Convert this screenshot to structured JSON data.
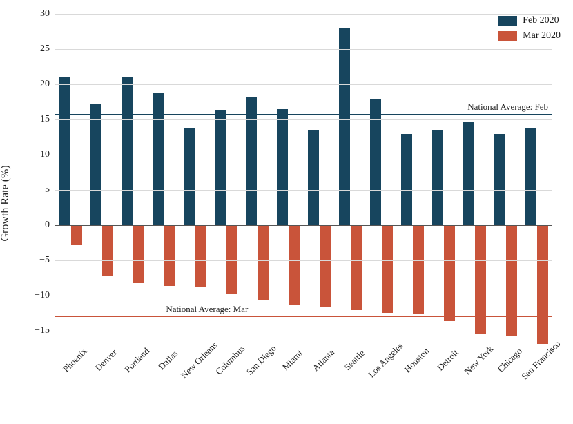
{
  "chart": {
    "type": "bar-grouped",
    "ylabel": "Growth Rate (%)",
    "ylim": [
      -18,
      30
    ],
    "yticks": [
      -15,
      -10,
      -5,
      0,
      5,
      10,
      15,
      20,
      25,
      30
    ],
    "grid_color": "#d9d9d9",
    "zero_line_color": "#555555",
    "background_color": "#ffffff",
    "bar_group_gap": 0.25,
    "bar_gap_within": 0.05,
    "categories": [
      "Phoenix",
      "Denver",
      "Portland",
      "Dallas",
      "New Orleans",
      "Columbus",
      "San Diego",
      "Miami",
      "Atlanta",
      "Seattle",
      "Los Angeles",
      "Houston",
      "Detroit",
      "New York",
      "Chicago",
      "San Francisco"
    ],
    "series": [
      {
        "name": "Feb 2020",
        "color": "#17455e",
        "values": [
          21.0,
          17.3,
          21.0,
          18.8,
          13.7,
          16.3,
          18.1,
          16.5,
          13.5,
          27.9,
          18.0,
          13.0,
          13.5,
          14.7,
          13.0,
          13.7
        ]
      },
      {
        "name": "Mar 2020",
        "color": "#c9543a",
        "values": [
          -2.8,
          -7.2,
          -8.2,
          -8.6,
          -8.8,
          -9.8,
          -10.6,
          -11.2,
          -11.6,
          -12.0,
          -12.4,
          -12.6,
          -13.6,
          -15.4,
          -15.6,
          -16.8
        ]
      }
    ],
    "reference_lines": [
      {
        "label": "National Average: Feb",
        "value": 15.8,
        "color": "#17455e",
        "label_side": "right"
      },
      {
        "label": "National Average: Mar",
        "value": -12.9,
        "color": "#c9543a",
        "label_side": "left"
      }
    ],
    "legend": {
      "position": "top-right",
      "items": [
        {
          "label": "Feb 2020",
          "color": "#17455e"
        },
        {
          "label": "Mar 2020",
          "color": "#c9543a"
        }
      ]
    },
    "fonts": {
      "axis_label_pt": 16,
      "tick_label_pt": 14,
      "legend_pt": 14,
      "annotation_pt": 13
    }
  }
}
